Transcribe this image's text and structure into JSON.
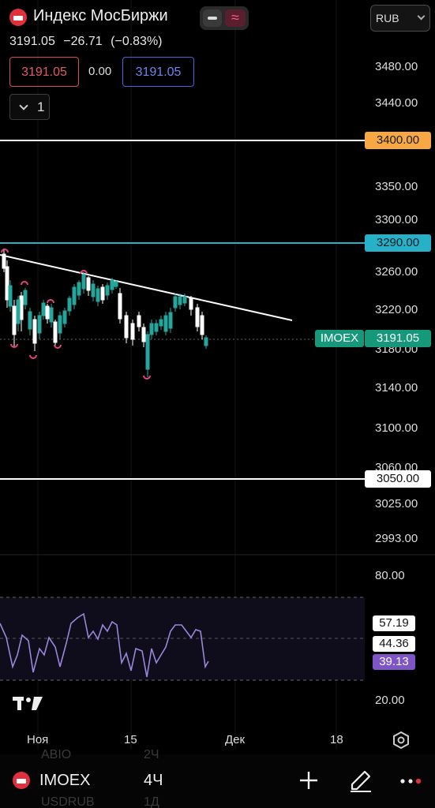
{
  "header": {
    "title": "Индекс МосБиржи",
    "currency": "RUB",
    "last": "3191.05",
    "change": "−26.71",
    "change_pct": "(−0.83%)",
    "bid": "3191.05",
    "spread": "0.00",
    "ask": "3191.05",
    "indicator_count": "1"
  },
  "price_axis": [
    "3480.00",
    "3440.00",
    "3350.00",
    "3300.00",
    "3260.00",
    "3220.00",
    "3180.00",
    "3140.00",
    "3100.00",
    "3060.00",
    "3025.00",
    "2993.00"
  ],
  "levels": {
    "l3400": "3400.00",
    "l3290": "3290.00",
    "l3050": "3050.00",
    "last_tag": "IMOEX",
    "last_price": "3191.05"
  },
  "rsi": {
    "axis_top": "80.00",
    "axis_bottom": "20.00",
    "label_a": "57.19",
    "label_b": "44.36",
    "label_c": "39.13"
  },
  "time_axis": [
    "Ноя",
    "15",
    "Дек",
    "18"
  ],
  "footer": {
    "symbol": "IMOEX",
    "timeframe": "4Ч",
    "ghost_1_sym": "ABIO",
    "ghost_1_tf": "2Ч",
    "ghost_2_sym": "USDRUB",
    "ghost_2_tf": "1Д"
  },
  "colors": {
    "up": "#26a69a",
    "down": "#ffffff",
    "trend": "#ffffff",
    "level_orange": "#f7a844",
    "level_cyan": "#27b1c9",
    "rsi_line": "#9b87d8",
    "marker": "#e0457b"
  },
  "icons": [
    "moex-flag-icon",
    "minus-toggle-icon",
    "wave-toggle-icon",
    "chevron-down-icon",
    "tradingview-logo-icon",
    "settings-icon",
    "plus-icon",
    "pen-icon",
    "more-icon"
  ]
}
